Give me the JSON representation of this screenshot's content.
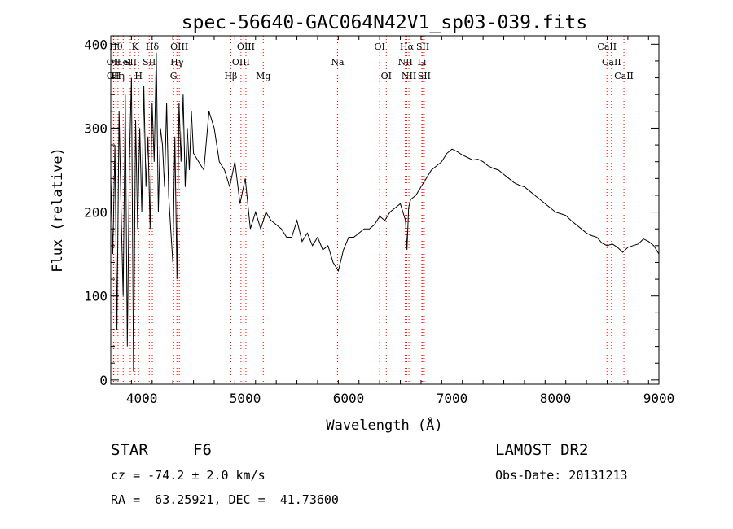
{
  "chart_data": {
    "type": "line",
    "title": "spec-56640-GAC064N42V1_sp03-039.fits",
    "xlabel": "Wavelength (Å)",
    "ylabel": "Flux (relative)",
    "xlim": [
      3700,
      9000
    ],
    "ylim": [
      -5,
      410
    ],
    "x_ticks": [
      4000,
      5000,
      6000,
      7000,
      8000,
      9000
    ],
    "y_ticks": [
      0,
      100,
      200,
      300,
      400
    ],
    "grid": false,
    "line_color": "#000000",
    "marker_color": "#ff0000",
    "series": [
      {
        "x": [
          3700,
          3720,
          3740,
          3760,
          3780,
          3800,
          3820,
          3840,
          3860,
          3880,
          3900,
          3920,
          3940,
          3960,
          3980,
          4000,
          4020,
          4040,
          4060,
          4080,
          4100,
          4120,
          4140,
          4160,
          4180,
          4200,
          4220,
          4240,
          4260,
          4280,
          4300,
          4320,
          4340,
          4360,
          4380,
          4400,
          4420,
          4440,
          4460,
          4480,
          4500,
          4550,
          4600,
          4650,
          4700,
          4750,
          4800,
          4850,
          4900,
          4950,
          5000,
          5050,
          5100,
          5150,
          5200,
          5250,
          5300,
          5350,
          5400,
          5450,
          5500,
          5550,
          5600,
          5650,
          5700,
          5750,
          5800,
          5850,
          5900,
          5950,
          6000,
          6050,
          6100,
          6150,
          6200,
          6250,
          6300,
          6350,
          6400,
          6450,
          6500,
          6550,
          6564,
          6580,
          6600,
          6650,
          6700,
          6750,
          6800,
          6850,
          6900,
          6950,
          7000,
          7050,
          7100,
          7150,
          7200,
          7250,
          7300,
          7350,
          7400,
          7450,
          7500,
          7550,
          7600,
          7650,
          7700,
          7750,
          7800,
          7850,
          7900,
          7950,
          8000,
          8050,
          8100,
          8150,
          8200,
          8250,
          8300,
          8350,
          8400,
          8450,
          8500,
          8550,
          8600,
          8650,
          8700,
          8750,
          8800,
          8850,
          8900,
          8950,
          9000
        ],
        "y": [
          240,
          150,
          280,
          60,
          320,
          200,
          100,
          340,
          40,
          260,
          360,
          10,
          310,
          180,
          300,
          200,
          350,
          230,
          290,
          180,
          330,
          260,
          390,
          200,
          300,
          280,
          230,
          330,
          220,
          180,
          140,
          290,
          120,
          330,
          260,
          340,
          230,
          300,
          250,
          320,
          270,
          260,
          250,
          320,
          300,
          260,
          250,
          230,
          260,
          210,
          240,
          180,
          200,
          180,
          200,
          190,
          185,
          180,
          170,
          170,
          190,
          165,
          175,
          160,
          170,
          155,
          160,
          140,
          130,
          155,
          170,
          170,
          175,
          180,
          180,
          185,
          195,
          190,
          200,
          205,
          210,
          190,
          155,
          205,
          215,
          220,
          230,
          240,
          250,
          255,
          260,
          270,
          275,
          272,
          268,
          265,
          262,
          263,
          260,
          255,
          252,
          250,
          245,
          240,
          235,
          232,
          230,
          225,
          220,
          215,
          210,
          205,
          200,
          198,
          196,
          190,
          185,
          180,
          175,
          172,
          170,
          163,
          160,
          162,
          158,
          152,
          158,
          160,
          162,
          168,
          165,
          160,
          150
        ]
      }
    ],
    "line_markers": [
      {
        "wl": 3727,
        "label": "OII",
        "row": 1
      },
      {
        "wl": 3729,
        "label": "OII",
        "row": 2
      },
      {
        "wl": 3750,
        "label": "Hθ",
        "row": 0
      },
      {
        "wl": 3770,
        "label": "Hη",
        "row": 2
      },
      {
        "wl": 3820,
        "label": "HeI",
        "row": 1
      },
      {
        "wl": 3889,
        "label": "SII",
        "row": 1
      },
      {
        "wl": 3934,
        "label": "K",
        "row": 0
      },
      {
        "wl": 3969,
        "label": "H",
        "row": 2
      },
      {
        "wl": 4102,
        "label": "Hδ",
        "row": 0
      },
      {
        "wl": 4072,
        "label": "SII",
        "row": 1
      },
      {
        "wl": 4308,
        "label": "G",
        "row": 2
      },
      {
        "wl": 4340,
        "label": "Hγ",
        "row": 1
      },
      {
        "wl": 4363,
        "label": "OIII",
        "row": 0
      },
      {
        "wl": 4861,
        "label": "Hβ",
        "row": 2
      },
      {
        "wl": 4959,
        "label": "OIII",
        "row": 1
      },
      {
        "wl": 5007,
        "label": "OIII",
        "row": 0
      },
      {
        "wl": 5175,
        "label": "Mg",
        "row": 2
      },
      {
        "wl": 5893,
        "label": "Na",
        "row": 1
      },
      {
        "wl": 6300,
        "label": "OI",
        "row": 0
      },
      {
        "wl": 6364,
        "label": "OI",
        "row": 2
      },
      {
        "wl": 6548,
        "label": "NII",
        "row": 1
      },
      {
        "wl": 6563,
        "label": "Hα",
        "row": 0
      },
      {
        "wl": 6583,
        "label": "NII",
        "row": 2
      },
      {
        "wl": 6708,
        "label": "Li",
        "row": 1
      },
      {
        "wl": 6717,
        "label": "SII",
        "row": 0
      },
      {
        "wl": 6731,
        "label": "SII",
        "row": 2
      },
      {
        "wl": 8498,
        "label": "CaII",
        "row": 0
      },
      {
        "wl": 8542,
        "label": "CaII",
        "row": 1
      },
      {
        "wl": 8662,
        "label": "CaII",
        "row": 2
      }
    ]
  },
  "info": {
    "class_label": "STAR",
    "subclass": "F6",
    "survey": "LAMOST DR2",
    "cz": "cz = -74.2 ± 2.0 km/s",
    "obs_date": "Obs-Date: 20131213",
    "coords": "RA =  63.25921, DEC =  41.73600"
  }
}
